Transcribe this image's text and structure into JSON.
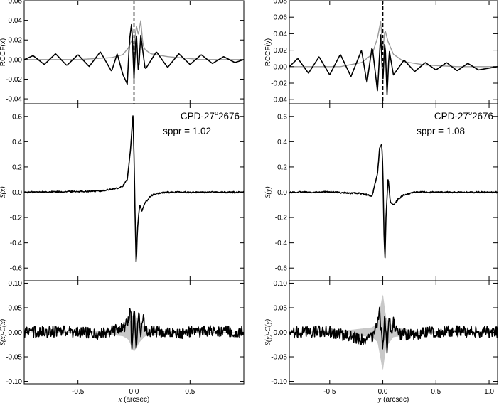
{
  "chart_data": [
    {
      "type": "line",
      "panel": "left-top",
      "ylabel": "RCCF(x)",
      "xlim": [
        -0.98,
        0.98
      ],
      "ylim": [
        -0.045,
        0.06
      ],
      "yticks": [
        "-0.04",
        "-0.02",
        "0.00",
        "0.02",
        "0.04",
        "0.06"
      ],
      "ytick_values": [
        -0.04,
        -0.02,
        0.0,
        0.02,
        0.04,
        0.06
      ],
      "vline_x": 0.0,
      "grid": false,
      "series": [
        {
          "style": "black",
          "x": [
            -0.98,
            -0.9,
            -0.8,
            -0.7,
            -0.6,
            -0.5,
            -0.4,
            -0.3,
            -0.2,
            -0.15,
            -0.1,
            -0.06,
            -0.04,
            -0.02,
            0.0,
            0.02,
            0.04,
            0.06,
            0.1,
            0.2,
            0.3,
            0.4,
            0.5,
            0.6,
            0.7,
            0.8,
            0.9,
            0.98
          ],
          "y": [
            0.0,
            0.004,
            -0.005,
            0.006,
            -0.006,
            0.005,
            -0.007,
            0.008,
            -0.012,
            0.006,
            -0.015,
            -0.025,
            0.02,
            0.038,
            -0.02,
            0.03,
            -0.015,
            0.025,
            -0.01,
            0.008,
            -0.008,
            0.006,
            -0.005,
            0.005,
            -0.004,
            0.003,
            -0.003,
            0.0
          ]
        },
        {
          "style": "gray",
          "x": [
            -0.98,
            -0.5,
            -0.2,
            -0.1,
            -0.05,
            -0.02,
            0.0,
            0.02,
            0.04,
            0.06,
            0.08,
            0.1,
            0.15,
            0.3,
            0.6,
            0.98
          ],
          "y": [
            0.0,
            0.0,
            0.002,
            0.005,
            0.012,
            0.02,
            0.01,
            0.035,
            0.025,
            0.04,
            0.015,
            0.01,
            0.006,
            0.003,
            0.0,
            0.0
          ]
        }
      ]
    },
    {
      "type": "line",
      "panel": "left-middle",
      "ylabel": "S(x)",
      "xlim": [
        -0.98,
        0.98
      ],
      "ylim": [
        -0.7,
        0.7
      ],
      "yticks": [
        "-0.6",
        "-0.4",
        "-0.2",
        "0.0",
        "0.2",
        "0.4",
        "0.6"
      ],
      "ytick_values": [
        -0.6,
        -0.4,
        -0.2,
        0.0,
        0.2,
        0.4,
        0.6
      ],
      "annotation": {
        "star_prefix": "CPD-27",
        "star_sup": "o",
        "star_suffix": "2676",
        "sppr": "sppr = 1.02"
      },
      "series": [
        {
          "style": "black",
          "x": [
            -0.98,
            -0.6,
            -0.3,
            -0.15,
            -0.1,
            -0.06,
            -0.03,
            -0.01,
            0.0,
            0.01,
            0.02,
            0.03,
            0.05,
            0.07,
            0.1,
            0.15,
            0.2,
            0.3,
            0.5,
            0.98
          ],
          "y": [
            0.0,
            0.005,
            0.01,
            0.03,
            0.05,
            0.1,
            0.35,
            0.62,
            0.3,
            -0.2,
            -0.6,
            -0.3,
            -0.1,
            -0.15,
            -0.08,
            -0.03,
            -0.01,
            0.0,
            0.0,
            0.0
          ]
        }
      ]
    },
    {
      "type": "line",
      "panel": "left-bottom",
      "ylabel": "S(x)-C(x)",
      "xlabel_var": "x",
      "xlabel_unit": "(arcsec)",
      "xlim": [
        -0.98,
        0.98
      ],
      "ylim": [
        -0.105,
        0.105
      ],
      "xticks": [
        "-0.5",
        "0.0",
        "0.5"
      ],
      "xtick_values": [
        -0.5,
        0.0,
        0.5
      ],
      "yticks": [
        "-0.10",
        "-0.05",
        "0.00",
        "0.05",
        "0.10"
      ],
      "ytick_values": [
        -0.1,
        -0.05,
        0.0,
        0.05,
        0.1
      ],
      "series": [
        {
          "style": "black",
          "x": [
            -0.98,
            -0.6,
            -0.3,
            -0.1,
            -0.05,
            -0.03,
            -0.02,
            0.0,
            0.02,
            0.04,
            0.06,
            0.08,
            0.1,
            0.3,
            0.6,
            0.98
          ],
          "y": [
            0.0,
            0.002,
            -0.004,
            0.01,
            0.02,
            0.055,
            -0.045,
            0.05,
            -0.03,
            0.045,
            -0.01,
            0.03,
            0.005,
            -0.003,
            0.002,
            0.0
          ]
        },
        {
          "style": "gray-band",
          "x": [
            -0.98,
            -0.3,
            -0.1,
            -0.05,
            0.0,
            0.05,
            0.1,
            0.3,
            0.98
          ],
          "y": [
            0.0,
            0.003,
            0.008,
            0.015,
            0.04,
            0.02,
            0.008,
            0.003,
            0.0
          ]
        }
      ]
    },
    {
      "type": "line",
      "panel": "right-top",
      "ylabel": "RCCF(y)",
      "xlim": [
        -0.88,
        1.08
      ],
      "ylim": [
        -0.045,
        0.08
      ],
      "yticks": [
        "-0.04",
        "-0.02",
        "0.00",
        "0.02",
        "0.04",
        "0.06",
        "0.08"
      ],
      "ytick_values": [
        -0.04,
        -0.02,
        0.0,
        0.02,
        0.04,
        0.06,
        0.08
      ],
      "vline_x": 0.0,
      "series": [
        {
          "style": "black",
          "x": [
            -0.88,
            -0.8,
            -0.7,
            -0.6,
            -0.5,
            -0.4,
            -0.3,
            -0.2,
            -0.15,
            -0.1,
            -0.05,
            -0.02,
            0.0,
            0.02,
            0.04,
            0.06,
            0.1,
            0.2,
            0.3,
            0.4,
            0.5,
            0.6,
            0.7,
            0.8,
            0.9,
            1.08
          ],
          "y": [
            0.0,
            0.01,
            -0.008,
            0.012,
            -0.01,
            0.015,
            -0.012,
            0.02,
            -0.02,
            0.025,
            -0.03,
            0.04,
            -0.02,
            0.035,
            -0.035,
            0.02,
            -0.01,
            0.008,
            -0.006,
            0.005,
            -0.004,
            0.005,
            -0.005,
            0.004,
            -0.004,
            0.0
          ]
        },
        {
          "style": "gray",
          "x": [
            -0.88,
            -0.4,
            -0.2,
            -0.1,
            -0.05,
            -0.02,
            0.0,
            0.02,
            0.05,
            0.1,
            0.2,
            0.4,
            0.7,
            1.08
          ],
          "y": [
            0.0,
            0.0,
            0.005,
            0.015,
            0.035,
            0.055,
            0.02,
            0.045,
            0.03,
            0.015,
            0.006,
            0.002,
            0.0,
            0.0
          ]
        }
      ]
    },
    {
      "type": "line",
      "panel": "right-middle",
      "ylabel": "S(y)",
      "xlim": [
        -0.88,
        1.08
      ],
      "ylim": [
        -0.7,
        0.7
      ],
      "yticks": [
        "-0.6",
        "-0.4",
        "-0.2",
        "0.0",
        "0.2",
        "0.4",
        "0.6"
      ],
      "ytick_values": [
        -0.6,
        -0.4,
        -0.2,
        0.0,
        0.2,
        0.4,
        0.6
      ],
      "annotation": {
        "star_prefix": "CPD-27",
        "star_sup": "o",
        "star_suffix": "2676",
        "sppr": "sppr = 1.08"
      },
      "series": [
        {
          "style": "black",
          "x": [
            -0.88,
            -0.5,
            -0.2,
            -0.1,
            -0.05,
            -0.03,
            -0.01,
            0.0,
            0.01,
            0.02,
            0.03,
            0.05,
            0.07,
            0.1,
            0.15,
            0.2,
            0.3,
            0.5,
            1.08
          ],
          "y": [
            0.0,
            0.002,
            -0.01,
            -0.03,
            0.15,
            0.35,
            0.38,
            0.2,
            -0.3,
            -0.54,
            -0.2,
            0.12,
            -0.08,
            -0.1,
            -0.05,
            -0.02,
            0.0,
            0.0,
            0.0
          ]
        }
      ]
    },
    {
      "type": "line",
      "panel": "right-bottom",
      "ylabel": "S(y)-C(y)",
      "xlabel_var": "y",
      "xlabel_unit": "(arcsec)",
      "xlim": [
        -0.88,
        1.08
      ],
      "ylim": [
        -0.105,
        0.105
      ],
      "xticks": [
        "-0.5",
        "0.0",
        "0.5",
        "1.0"
      ],
      "xtick_values": [
        -0.5,
        0.0,
        0.5,
        1.0
      ],
      "yticks": [
        "-0.10",
        "-0.05",
        "0.00",
        "0.05",
        "0.10"
      ],
      "ytick_values": [
        -0.1,
        -0.05,
        0.0,
        0.05,
        0.1
      ],
      "series": [
        {
          "style": "black",
          "x": [
            -0.88,
            -0.5,
            -0.2,
            -0.1,
            -0.06,
            -0.03,
            0.0,
            0.02,
            0.04,
            0.06,
            0.08,
            0.1,
            0.15,
            0.3,
            0.6,
            1.08
          ],
          "y": [
            0.0,
            0.002,
            -0.015,
            -0.01,
            0.015,
            0.04,
            -0.04,
            0.035,
            -0.05,
            0.04,
            -0.01,
            0.02,
            -0.005,
            -0.003,
            0.002,
            0.0
          ]
        },
        {
          "style": "gray-band",
          "x": [
            -0.88,
            -0.3,
            -0.1,
            -0.05,
            0.0,
            0.03,
            0.1,
            0.3,
            1.08
          ],
          "y": [
            0.0,
            0.005,
            0.01,
            0.02,
            0.08,
            0.03,
            0.01,
            0.004,
            0.0
          ]
        }
      ]
    }
  ]
}
